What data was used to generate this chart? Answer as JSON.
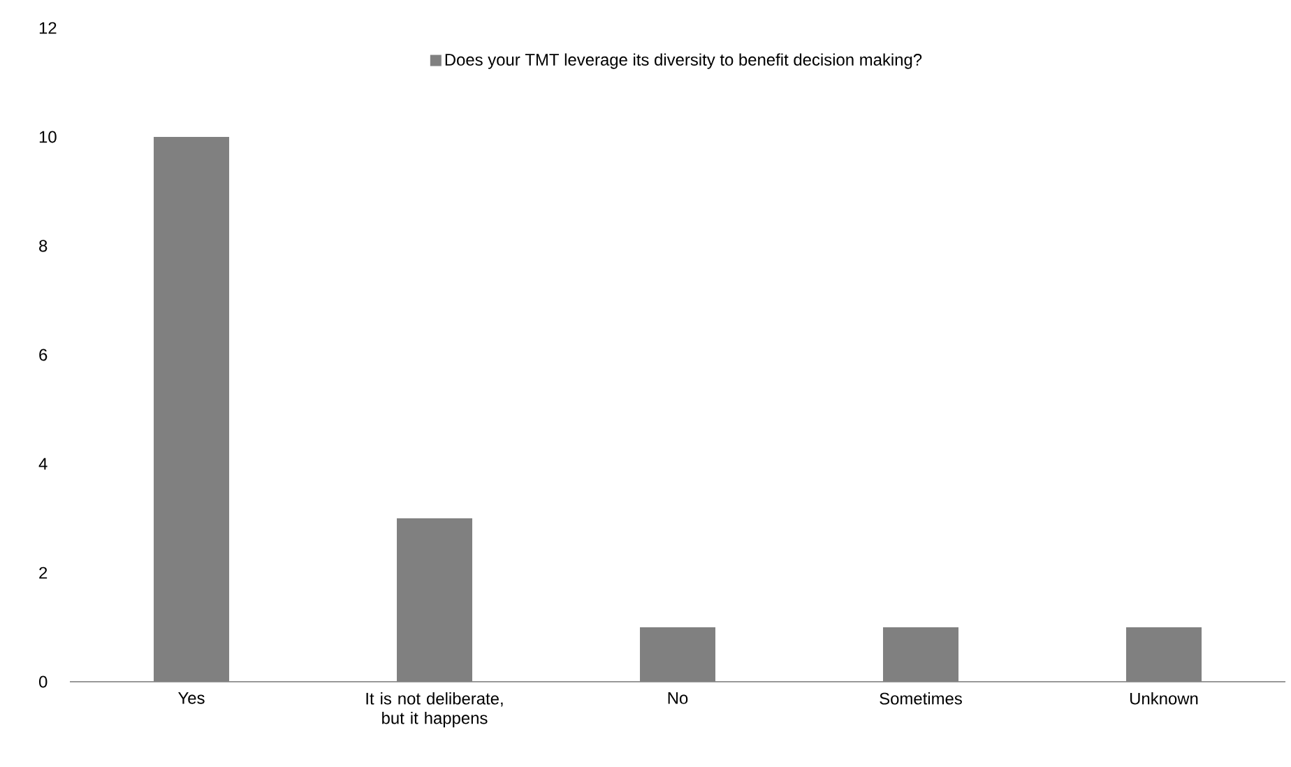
{
  "chart_data": {
    "type": "bar",
    "categories": [
      "Yes",
      "It is not deliberate, but it happens",
      "No",
      "Sometimes",
      "Unknown"
    ],
    "series": [
      {
        "name": "Does your TMT leverage its diversity to benefit decision making?",
        "color": "#808080",
        "values": [
          10,
          3,
          1,
          1,
          1
        ]
      }
    ],
    "ylim": [
      0,
      12
    ],
    "yticks": [
      0,
      2,
      4,
      6,
      8,
      10,
      12
    ],
    "legend": "top",
    "grid": false
  }
}
